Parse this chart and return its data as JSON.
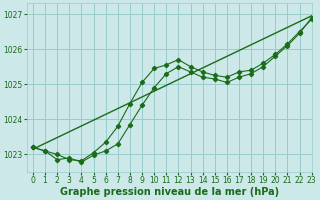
{
  "xlabel": "Graphe pression niveau de la mer (hPa)",
  "ylim": [
    1022.5,
    1027.3
  ],
  "xlim": [
    -0.5,
    23
  ],
  "yticks": [
    1023,
    1024,
    1025,
    1026,
    1027
  ],
  "xticks": [
    0,
    1,
    2,
    3,
    4,
    5,
    6,
    7,
    8,
    9,
    10,
    11,
    12,
    13,
    14,
    15,
    16,
    17,
    18,
    19,
    20,
    21,
    22,
    23
  ],
  "bg_color": "#cce8e8",
  "grid_color": "#99cccc",
  "line_color": "#1a6b1a",
  "line1_x": [
    0,
    1,
    2,
    3,
    4,
    5,
    6,
    7,
    8,
    9,
    10,
    11,
    12,
    13,
    14,
    15,
    16,
    17,
    18,
    19,
    20,
    21,
    22,
    23
  ],
  "line1_y": [
    1023.2,
    1023.1,
    1023.0,
    1022.85,
    1022.82,
    1023.05,
    1023.35,
    1023.8,
    1024.45,
    1025.05,
    1025.45,
    1025.55,
    1025.7,
    1025.5,
    1025.35,
    1025.25,
    1025.2,
    1025.35,
    1025.4,
    1025.6,
    1025.85,
    1026.15,
    1026.5,
    1026.85
  ],
  "line2_x": [
    0,
    1,
    2,
    3,
    4,
    5,
    6,
    7,
    8,
    9,
    10,
    11,
    12,
    13,
    14,
    15,
    16,
    17,
    18,
    19,
    20,
    21,
    22,
    23
  ],
  "line2_y": [
    1023.2,
    1023.1,
    1022.85,
    1022.9,
    1022.78,
    1022.98,
    1023.1,
    1023.3,
    1023.85,
    1024.4,
    1024.9,
    1025.3,
    1025.5,
    1025.35,
    1025.2,
    1025.15,
    1025.05,
    1025.2,
    1025.3,
    1025.5,
    1025.8,
    1026.1,
    1026.45,
    1026.9
  ],
  "trend_x": [
    0,
    23
  ],
  "trend_y": [
    1023.15,
    1026.95
  ],
  "font_color": "#1a6b1a",
  "tick_fontsize": 5.5,
  "label_fontsize": 7.0
}
